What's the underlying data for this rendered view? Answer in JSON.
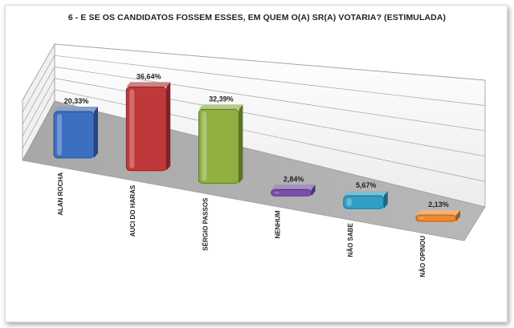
{
  "chart_data": {
    "type": "bar",
    "title": "6 - E SE OS CANDIDATOS FOSSEM ESSES, EM QUEM O(A) SR(A) VOTARIA? (ESTIMULADA)",
    "categories": [
      "ALAN ROCHA",
      "AUCI DO HARAS",
      "SÉRGIO PASSOS",
      "NENHUM",
      "NÃO SABE",
      "NÃO OPINOU"
    ],
    "values": [
      20.33,
      36.64,
      32.39,
      2.84,
      5.67,
      2.13
    ],
    "value_labels": [
      "20,33%",
      "36,64%",
      "32,39%",
      "2,84%",
      "5,67%",
      "2,13%"
    ],
    "colors": [
      "#3c6fc0",
      "#c0393a",
      "#8fb040",
      "#7a4fa8",
      "#2fa0c4",
      "#f0882c"
    ],
    "ylim": [
      0,
      45
    ],
    "xlabel": "",
    "ylabel": "",
    "grid": true,
    "style": "3d-perspective"
  }
}
